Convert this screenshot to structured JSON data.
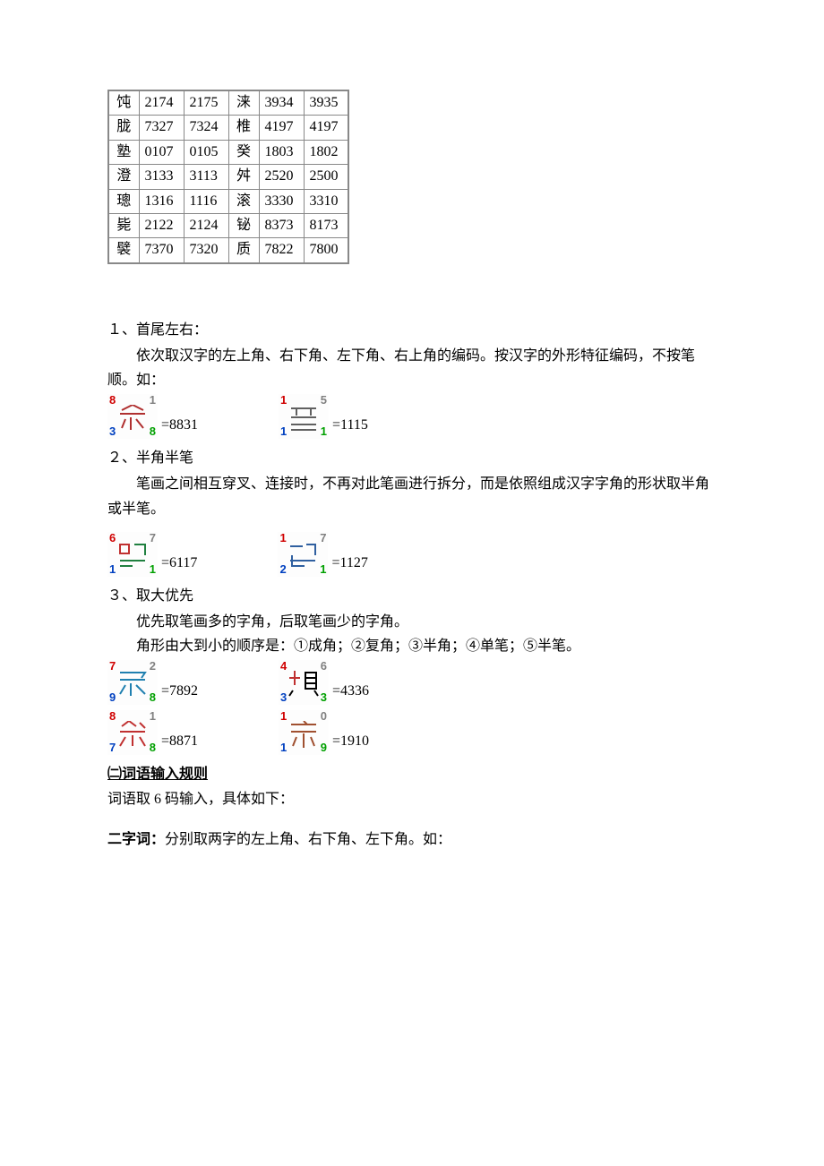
{
  "table": {
    "columns_count": 6,
    "border_color": "#888888",
    "cell_fontsize": 16,
    "rows": [
      [
        "饨",
        "2174",
        "2175",
        "涞",
        "3934",
        "3935"
      ],
      [
        "胧",
        "7327",
        "7324",
        "椎",
        "4197",
        "4197"
      ],
      [
        "塾",
        "0107",
        "0105",
        "癸",
        "1803",
        "1802"
      ],
      [
        "澄",
        "3133",
        "3113",
        "舛",
        "2520",
        "2500"
      ],
      [
        "璁",
        "1316",
        "1116",
        "滚",
        "3330",
        "3310"
      ],
      [
        "毙",
        "2122",
        "2124",
        "铋",
        "8373",
        "8173"
      ],
      [
        "襞",
        "7370",
        "7320",
        "质",
        "7822",
        "7800"
      ]
    ]
  },
  "sections": {
    "s1": {
      "num": "１、首尾左右：",
      "body": "依次取汉字的左上角、右下角、左下角、右上角的编码。按汉字的外形特征编码，不按笔顺。如："
    },
    "s2": {
      "num": "２、半角半笔",
      "body": "笔画之间相互穿叉、连接时，不再对此笔画进行拆分，而是依照组成汉字字角的形状取半角或半笔。"
    },
    "s3": {
      "num": "３、取大优先",
      "body1": "优先取笔画多的字角，后取笔画少的字角。",
      "body2": "角形由大到小的顺序是：①成角；②复角；③半角；④单笔；⑤半笔。"
    },
    "phrase_rule": {
      "heading": "㈡词语输入规则",
      "line1": "词语取 6 码输入，具体如下：",
      "line2_label": "二字词：",
      "line2_rest": "分别取两字的左上角、右下角、左下角。如："
    }
  },
  "glyphs": {
    "g1a": {
      "tl": "8",
      "tr": "1",
      "bl": "3",
      "br": "8",
      "eq": "=8831",
      "c_tl": "c-red",
      "c_tr": "c-gray",
      "c_bl": "c-blue",
      "c_br": "c-green"
    },
    "g1b": {
      "tl": "1",
      "tr": "5",
      "bl": "1",
      "br": "1",
      "eq": "=1115",
      "c_tl": "c-red",
      "c_tr": "c-gray",
      "c_bl": "c-blue",
      "c_br": "c-green"
    },
    "g2a": {
      "tl": "6",
      "tr": "7",
      "bl": "1",
      "br": "1",
      "eq": "=6117",
      "c_tl": "c-red",
      "c_tr": "c-gray",
      "c_bl": "c-blue",
      "c_br": "c-green"
    },
    "g2b": {
      "tl": "1",
      "tr": "7",
      "bl": "2",
      "br": "1",
      "eq": "=1127",
      "c_tl": "c-red",
      "c_tr": "c-gray",
      "c_bl": "c-blue",
      "c_br": "c-green"
    },
    "g3a": {
      "tl": "7",
      "tr": "2",
      "bl": "9",
      "br": "8",
      "eq": "=7892",
      "c_tl": "c-red",
      "c_tr": "c-gray",
      "c_bl": "c-blue",
      "c_br": "c-green"
    },
    "g3b": {
      "tl": "4",
      "tr": "6",
      "bl": "3",
      "br": "3",
      "eq": "=4336",
      "c_tl": "c-red",
      "c_tr": "c-gray",
      "c_bl": "c-blue",
      "c_br": "c-green"
    },
    "g3c": {
      "tl": "8",
      "tr": "1",
      "bl": "7",
      "br": "8",
      "eq": "=8871",
      "c_tl": "c-red",
      "c_tr": "c-gray",
      "c_bl": "c-blue",
      "c_br": "c-green"
    },
    "g3d": {
      "tl": "1",
      "tr": "0",
      "bl": "1",
      "br": "9",
      "eq": "=1910",
      "c_tl": "c-red",
      "c_tr": "c-gray",
      "c_bl": "c-blue",
      "c_br": "c-green"
    }
  },
  "colors": {
    "text": "#000000",
    "background": "#ffffff",
    "table_border": "#888888",
    "red": "#d00000",
    "blue": "#0040c0",
    "green": "#00a000",
    "gray": "#808080"
  }
}
